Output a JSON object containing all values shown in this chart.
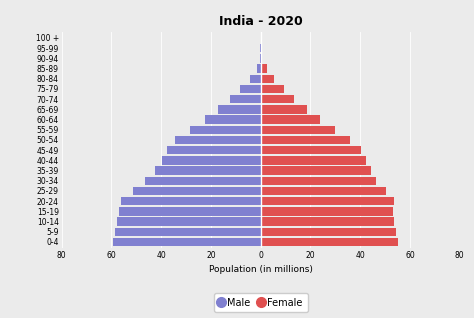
{
  "title": "India - 2020",
  "xlabel": "Population (in millions)",
  "age_groups": [
    "0-4",
    "5-9",
    "10-14",
    "15-19",
    "20-24",
    "25-29",
    "30-34",
    "35-39",
    "40-44",
    "45-49",
    "50-54",
    "55-59",
    "60-64",
    "65-69",
    "70-74",
    "75-79",
    "80-84",
    "85-89",
    "90-94",
    "95-99",
    "100 +"
  ],
  "male": [
    59.2,
    58.5,
    57.8,
    57.0,
    56.0,
    51.5,
    46.5,
    42.5,
    39.5,
    37.5,
    34.5,
    28.5,
    22.5,
    17.0,
    12.5,
    8.5,
    4.5,
    1.5,
    0.4,
    0.1,
    0.02
  ],
  "female": [
    55.0,
    54.2,
    53.5,
    53.0,
    53.5,
    50.5,
    46.5,
    44.5,
    42.5,
    40.5,
    36.0,
    30.0,
    24.0,
    18.5,
    13.5,
    9.5,
    5.5,
    2.5,
    0.7,
    0.2,
    0.02
  ],
  "male_color": "#8080d0",
  "female_color": "#e05050",
  "background_color": "#ebebeb",
  "plot_background": "#ebebeb",
  "xlim": 80,
  "title_fontsize": 9,
  "label_fontsize": 6.5,
  "tick_fontsize": 5.5,
  "legend_fontsize": 7
}
